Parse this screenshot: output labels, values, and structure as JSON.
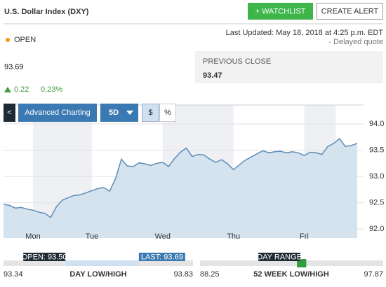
{
  "header": {
    "title": "U.S. Dollar Index (DXY)",
    "watchlist": "+ WATCHLIST",
    "alert": "CREATE ALERT"
  },
  "quote": {
    "status": "OPEN",
    "updated": "Last Updated: May 18, 2018 at 4:25 p.m. EDT",
    "delayed": "- Delayed quote",
    "price": "93.69",
    "change": "0.22",
    "change_pct": "0.23%",
    "previous_close_label": "PREVIOUS CLOSE",
    "previous_close": "93.47"
  },
  "toolbar": {
    "back": "<",
    "advanced": "Advanced Charting",
    "range": "5D",
    "dollar": "$",
    "percent": "%"
  },
  "chart_data": {
    "type": "area",
    "color": "#5b8db8",
    "categories": [
      null,
      null,
      null,
      null,
      null,
      "Mon",
      null,
      null,
      null,
      null,
      null,
      null,
      null,
      null,
      null,
      "Tue",
      null,
      null,
      null,
      null,
      null,
      null,
      null,
      null,
      null,
      null,
      null,
      "Wed",
      null,
      null,
      null,
      null,
      null,
      null,
      null,
      null,
      null,
      null,
      null,
      "Thu",
      null,
      null,
      null,
      null,
      null,
      null,
      null,
      null,
      null,
      null,
      null,
      "Fri",
      null,
      null,
      null,
      null,
      null,
      null,
      null,
      null,
      null
    ],
    "values": [
      92.47,
      92.45,
      92.4,
      92.41,
      92.38,
      92.36,
      92.32,
      92.3,
      92.22,
      92.43,
      92.55,
      92.6,
      92.64,
      92.65,
      92.69,
      92.73,
      92.77,
      92.79,
      92.72,
      92.96,
      93.33,
      93.2,
      93.19,
      93.26,
      93.24,
      93.21,
      93.25,
      93.27,
      93.19,
      93.34,
      93.46,
      93.54,
      93.38,
      93.42,
      93.41,
      93.33,
      93.27,
      93.32,
      93.24,
      93.13,
      93.22,
      93.31,
      93.37,
      93.43,
      93.49,
      93.45,
      93.47,
      93.48,
      93.45,
      93.47,
      93.45,
      93.4,
      93.46,
      93.45,
      93.42,
      93.57,
      93.63,
      93.72,
      93.57,
      93.59,
      93.63
    ],
    "ylim": [
      91.83,
      94.36
    ],
    "yticks": [
      {
        "value": 94,
        "label": "94.0"
      },
      93.5,
      {
        "value": 93,
        "label": "93.0"
      },
      92.5,
      {
        "value": 92,
        "label": "92.0"
      }
    ],
    "grid": true
  },
  "day_range": {
    "open_label": "OPEN: 93.50",
    "open": "93.50",
    "last_label": "LAST: 93.69",
    "last": "93.69",
    "low": "93.34",
    "caption": "DAY LOW/HIGH",
    "high": "93.83"
  },
  "week52_range": {
    "tag": "DAY RANGE",
    "low": "88.25",
    "caption": "52 WEEK LOW/HIGH",
    "high": "97.87"
  }
}
